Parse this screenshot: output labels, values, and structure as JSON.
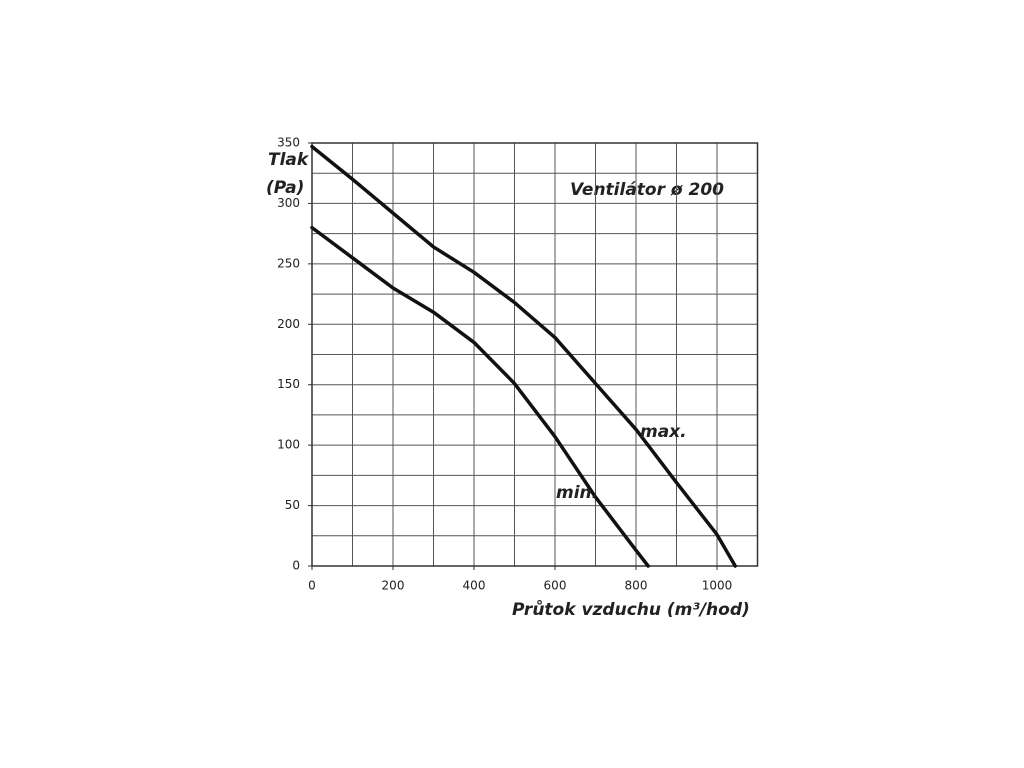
{
  "chart_data": {
    "type": "line",
    "title": "Ventilátor ø 200",
    "ylabel_lines": [
      "Tlak",
      "(Pa)"
    ],
    "xlabel": "Průtok vzduchu (m³/hod)",
    "xlim": [
      0,
      1100
    ],
    "ylim": [
      0,
      350
    ],
    "xticks": [
      0,
      200,
      400,
      600,
      800,
      1000
    ],
    "yticks": [
      0,
      50,
      100,
      150,
      200,
      250,
      300,
      350
    ],
    "xgrid": [
      100,
      200,
      300,
      400,
      500,
      600,
      700,
      800,
      900,
      1000
    ],
    "ygrid": [
      25,
      50,
      75,
      100,
      125,
      150,
      175,
      200,
      225,
      250,
      275,
      300,
      325
    ],
    "series": [
      {
        "name": "max.",
        "color": "#111111",
        "x": [
          0,
          100,
          200,
          300,
          400,
          500,
          600,
          700,
          800,
          900,
          1000,
          1045
        ],
        "values": [
          347,
          320,
          292,
          264,
          243,
          218,
          189,
          151,
          113,
          69,
          26,
          0
        ]
      },
      {
        "name": "min.",
        "color": "#111111",
        "x": [
          0,
          100,
          200,
          300,
          400,
          500,
          600,
          700,
          800,
          830
        ],
        "values": [
          280,
          255,
          230,
          210,
          185,
          151,
          107,
          57,
          13,
          0
        ]
      }
    ]
  }
}
